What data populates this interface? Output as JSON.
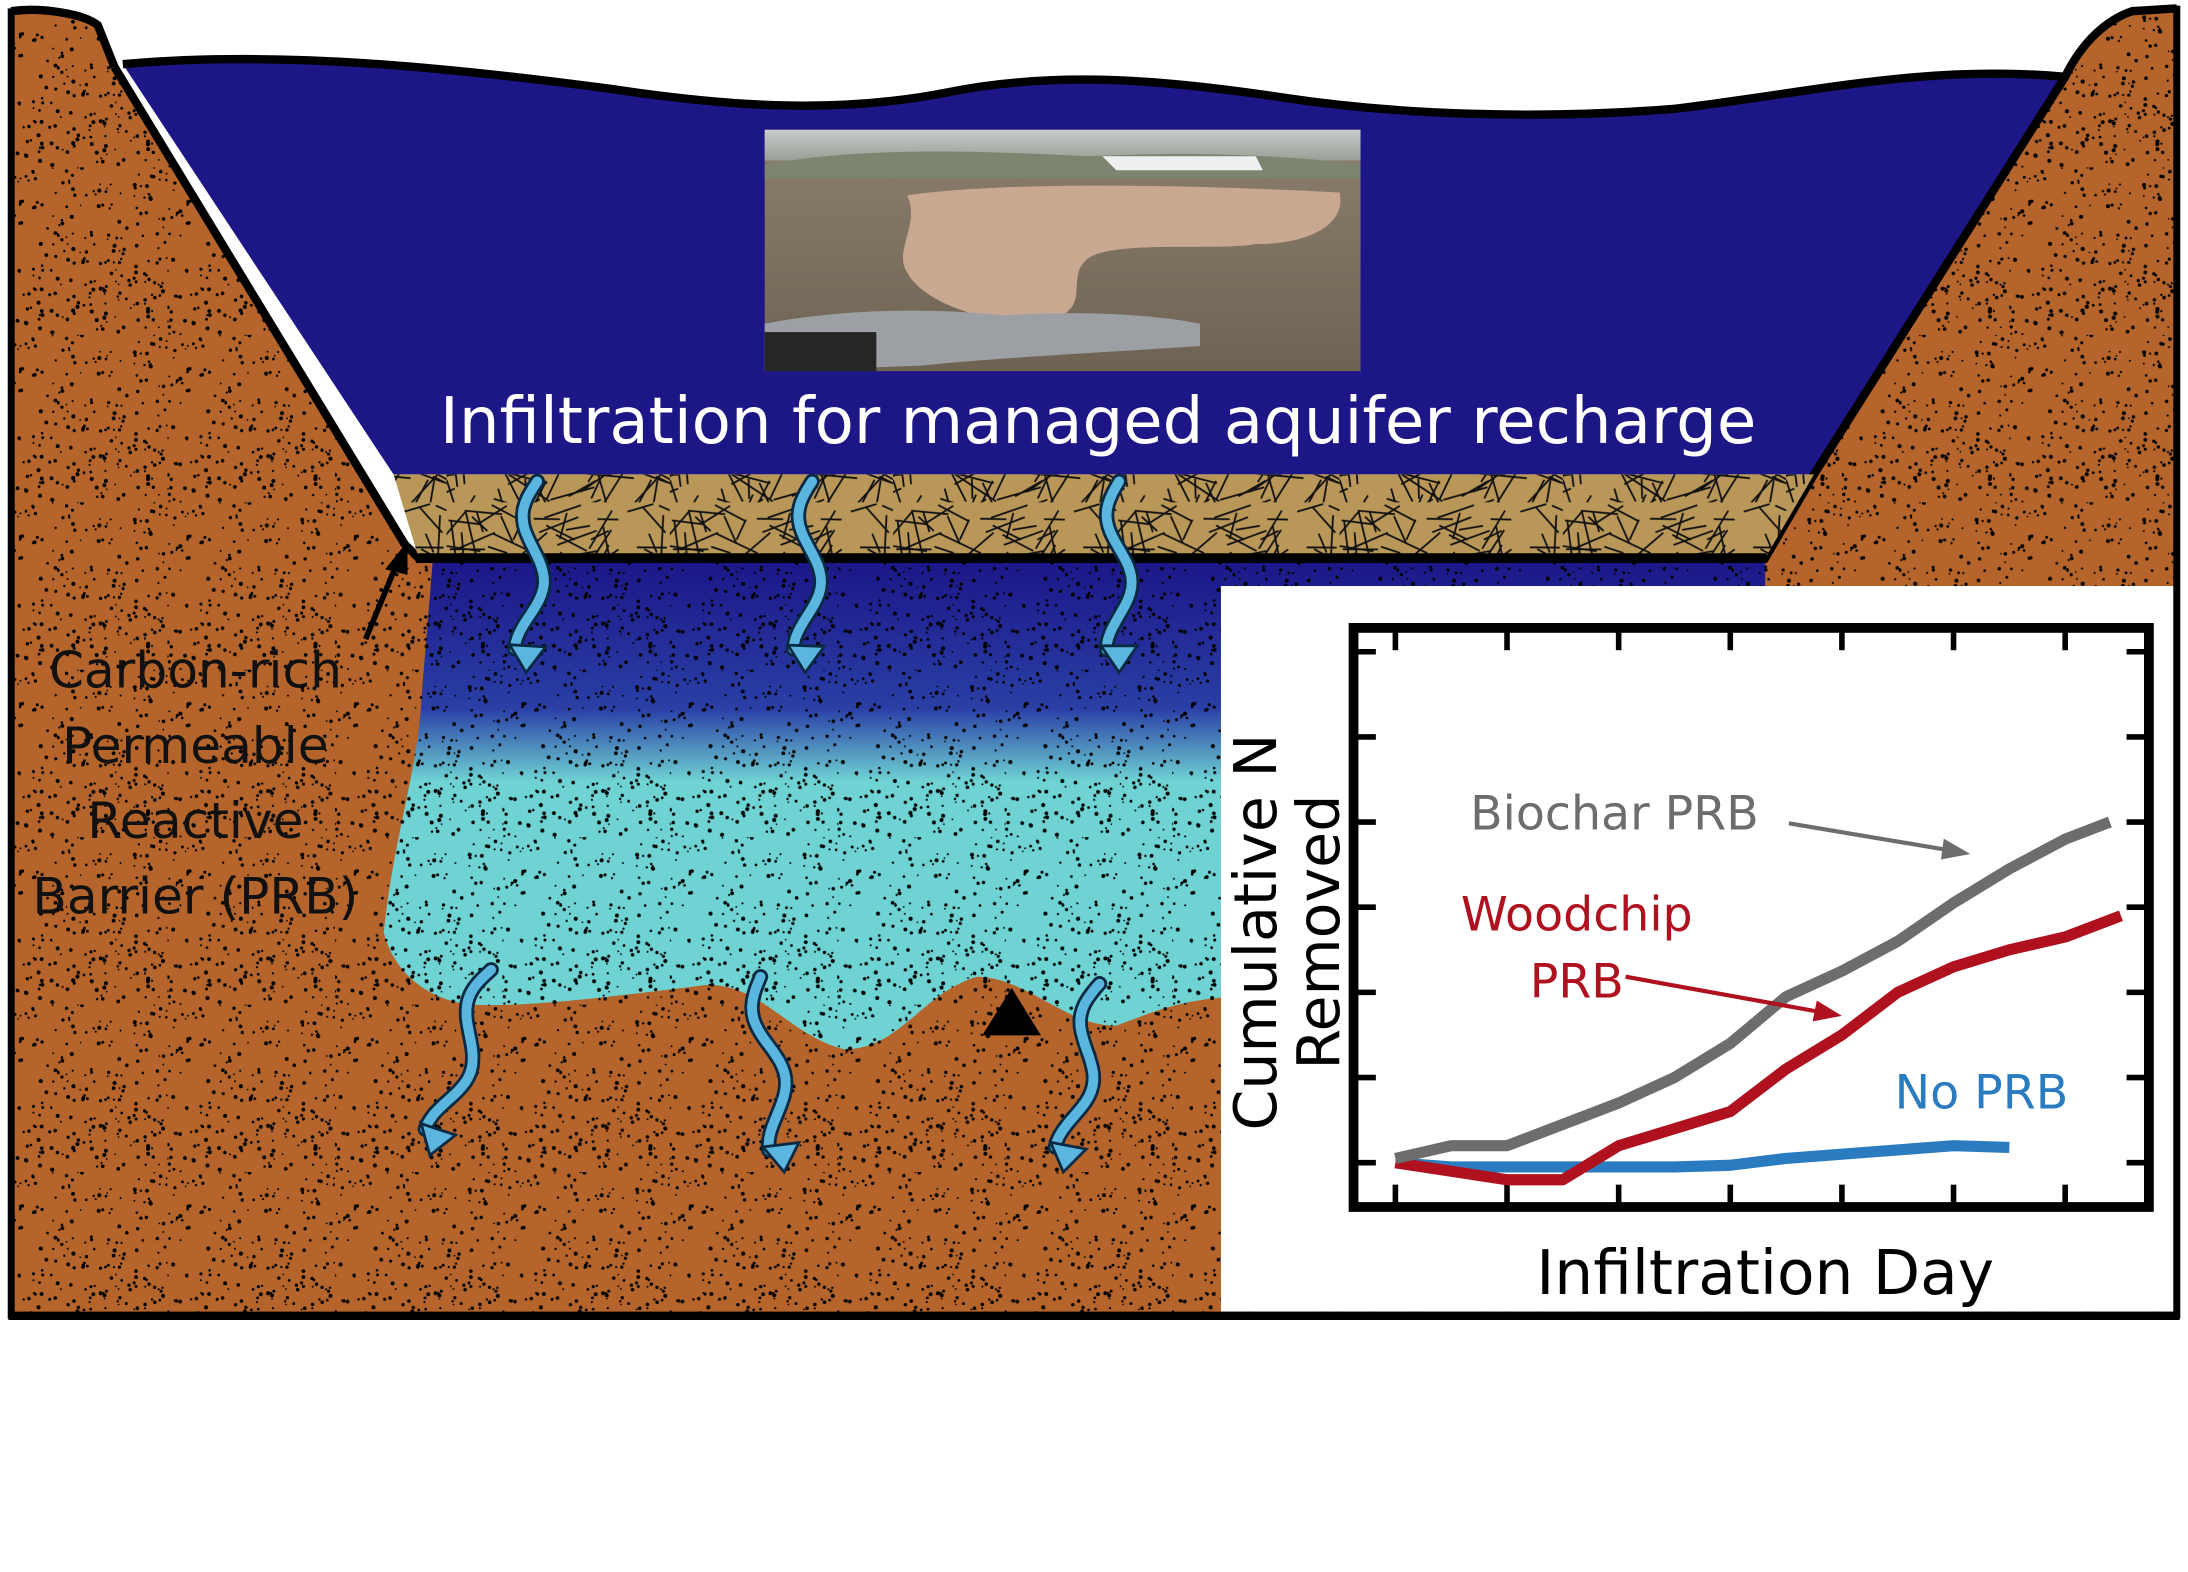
{
  "title": "Infiltration for managed aquifer recharge",
  "barrier_label": [
    "Carbon-rich",
    "Permeable",
    "Reactive",
    "Barrier (PRB)"
  ],
  "chart_data": {
    "type": "line",
    "ylabel": [
      "Cumulative N",
      "Removed"
    ],
    "xlabel": "Infiltration Day",
    "xlim": [
      -0.375,
      6.75
    ],
    "ylim": [
      -0.52,
      6.28
    ],
    "xticks": [
      0,
      1,
      2,
      3,
      4,
      5,
      6
    ],
    "yticks": [
      0,
      1,
      2,
      3,
      4,
      5,
      6
    ],
    "series": [
      {
        "name": "Biochar PRB",
        "color": "#6d6d6d",
        "x": [
          0,
          0.5,
          1,
          1.5,
          2,
          2.5,
          3,
          3.5,
          4,
          4.5,
          5,
          5.5,
          6,
          6.4
        ],
        "values": [
          0.05,
          0.2,
          0.2,
          0.45,
          0.7,
          1.0,
          1.4,
          1.95,
          2.25,
          2.6,
          3.05,
          3.45,
          3.8,
          4.0
        ]
      },
      {
        "name": "Woodchip PRB",
        "color": "#b0111e",
        "x": [
          0,
          0.5,
          1,
          1.5,
          2,
          2.5,
          3,
          3.5,
          4,
          4.5,
          5,
          5.5,
          6,
          6.5
        ],
        "values": [
          0,
          -0.1,
          -0.2,
          -0.2,
          0.2,
          0.4,
          0.6,
          1.1,
          1.5,
          2.0,
          2.3,
          2.5,
          2.65,
          2.9
        ]
      },
      {
        "name": "No PRB",
        "color": "#2a7bbf",
        "x": [
          0,
          0.5,
          1,
          1.5,
          2,
          2.5,
          3,
          3.5,
          4,
          4.5,
          5,
          5.5
        ],
        "values": [
          0,
          -0.05,
          -0.05,
          -0.05,
          -0.05,
          -0.05,
          -0.03,
          0.05,
          0.1,
          0.15,
          0.2,
          0.18
        ]
      }
    ]
  }
}
